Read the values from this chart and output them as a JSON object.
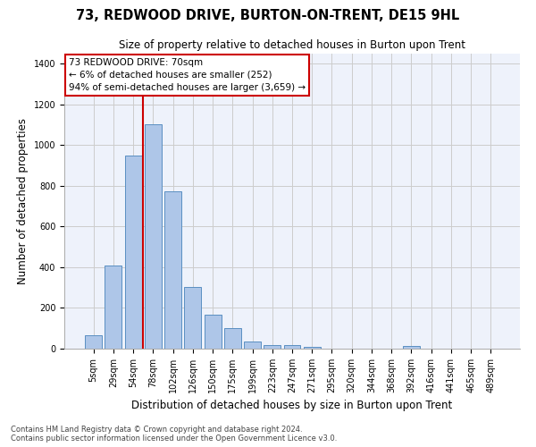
{
  "title_line1": "73, REDWOOD DRIVE, BURTON-ON-TRENT, DE15 9HL",
  "title_line2": "Size of property relative to detached houses in Burton upon Trent",
  "xlabel": "Distribution of detached houses by size in Burton upon Trent",
  "ylabel": "Number of detached properties",
  "footnote1": "Contains HM Land Registry data © Crown copyright and database right 2024.",
  "footnote2": "Contains public sector information licensed under the Open Government Licence v3.0.",
  "bar_labels": [
    "5sqm",
    "29sqm",
    "54sqm",
    "78sqm",
    "102sqm",
    "126sqm",
    "150sqm",
    "175sqm",
    "199sqm",
    "223sqm",
    "247sqm",
    "271sqm",
    "295sqm",
    "320sqm",
    "344sqm",
    "368sqm",
    "392sqm",
    "416sqm",
    "441sqm",
    "465sqm",
    "489sqm"
  ],
  "bar_values": [
    65,
    410,
    950,
    1105,
    775,
    305,
    165,
    100,
    35,
    18,
    18,
    10,
    0,
    0,
    0,
    0,
    13,
    0,
    0,
    0,
    0
  ],
  "bar_color": "#aec6e8",
  "bar_edge_color": "#5a8fc2",
  "grid_color": "#cccccc",
  "bg_color": "#eef2fb",
  "vline_x_index": 3,
  "vline_color": "#cc0000",
  "annotation_text_line1": "73 REDWOOD DRIVE: 70sqm",
  "annotation_text_line2": "← 6% of detached houses are smaller (252)",
  "annotation_text_line3": "94% of semi-detached houses are larger (3,659) →",
  "annotation_box_color": "#cc0000",
  "ylim": [
    0,
    1450
  ],
  "yticks": [
    0,
    200,
    400,
    600,
    800,
    1000,
    1200,
    1400
  ],
  "title1_fontsize": 10.5,
  "title2_fontsize": 8.5,
  "ylabel_fontsize": 8.5,
  "xlabel_fontsize": 8.5,
  "tick_fontsize": 7,
  "annotation_fontsize": 7.5,
  "footnote_fontsize": 6
}
